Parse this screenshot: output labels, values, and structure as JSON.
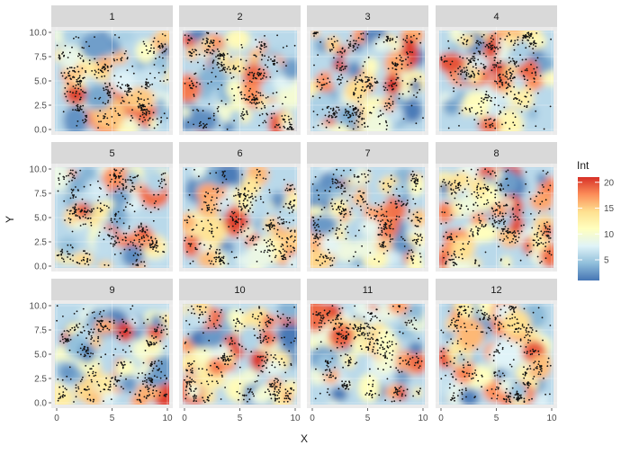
{
  "chart_data": {
    "type": "heatmap",
    "title": "",
    "xlabel": "X",
    "ylabel": "Y",
    "facets": [
      "1",
      "2",
      "3",
      "4",
      "5",
      "6",
      "7",
      "8",
      "9",
      "10",
      "11",
      "12"
    ],
    "facet_layout": {
      "rows": 3,
      "cols": 4
    },
    "xlim": [
      0,
      10
    ],
    "ylim": [
      0,
      10
    ],
    "x_ticks": [
      0,
      5,
      10
    ],
    "x_tick_labels": [
      "0",
      "5",
      "10"
    ],
    "y_ticks": [
      0,
      2.5,
      5,
      7.5,
      10
    ],
    "y_tick_labels": [
      "0.0",
      "2.5",
      "5.0",
      "7.5",
      "10.0"
    ],
    "grid": true,
    "overlay": "scatter points (black)",
    "legend": {
      "title": "Int",
      "placement": "right",
      "range": [
        1,
        21
      ],
      "breaks": [
        5,
        10,
        15,
        20
      ],
      "break_labels": [
        "5",
        "10",
        "15",
        "20"
      ],
      "palette": [
        "#4575b4",
        "#91bfdb",
        "#e0f3f8",
        "#ffffbf",
        "#fee090",
        "#fc8d59",
        "#d73027"
      ]
    }
  }
}
